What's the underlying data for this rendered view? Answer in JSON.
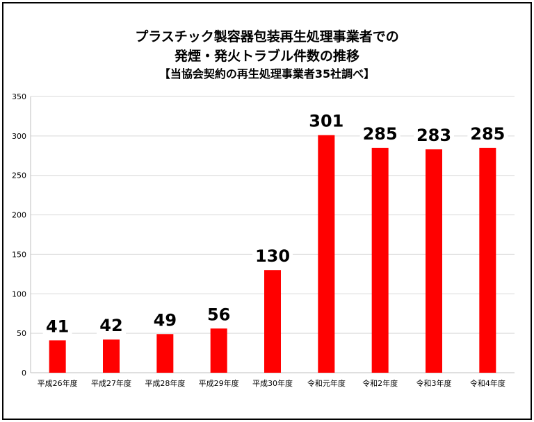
{
  "chart_data": {
    "type": "bar",
    "title": "プラスチック製容器包装再生処理事業者での",
    "title_line2": "発煙・発火トラブル件数の推移",
    "subtitle": "【当協会契約の再生処理事業者35社調べ】",
    "categories": [
      "平成26年度",
      "平成27年度",
      "平成28年度",
      "平成29年度",
      "平成30年度",
      "令和元年度",
      "令和2年度",
      "令和3年度",
      "令和4年度"
    ],
    "values": [
      41,
      42,
      49,
      56,
      130,
      301,
      285,
      283,
      285
    ],
    "xlabel": "",
    "ylabel": "",
    "ylim": [
      0,
      350
    ],
    "yticks": [
      0,
      50,
      100,
      150,
      200,
      250,
      300,
      350
    ],
    "grid": true,
    "legend": "none",
    "bar_color": "#ff0000"
  }
}
